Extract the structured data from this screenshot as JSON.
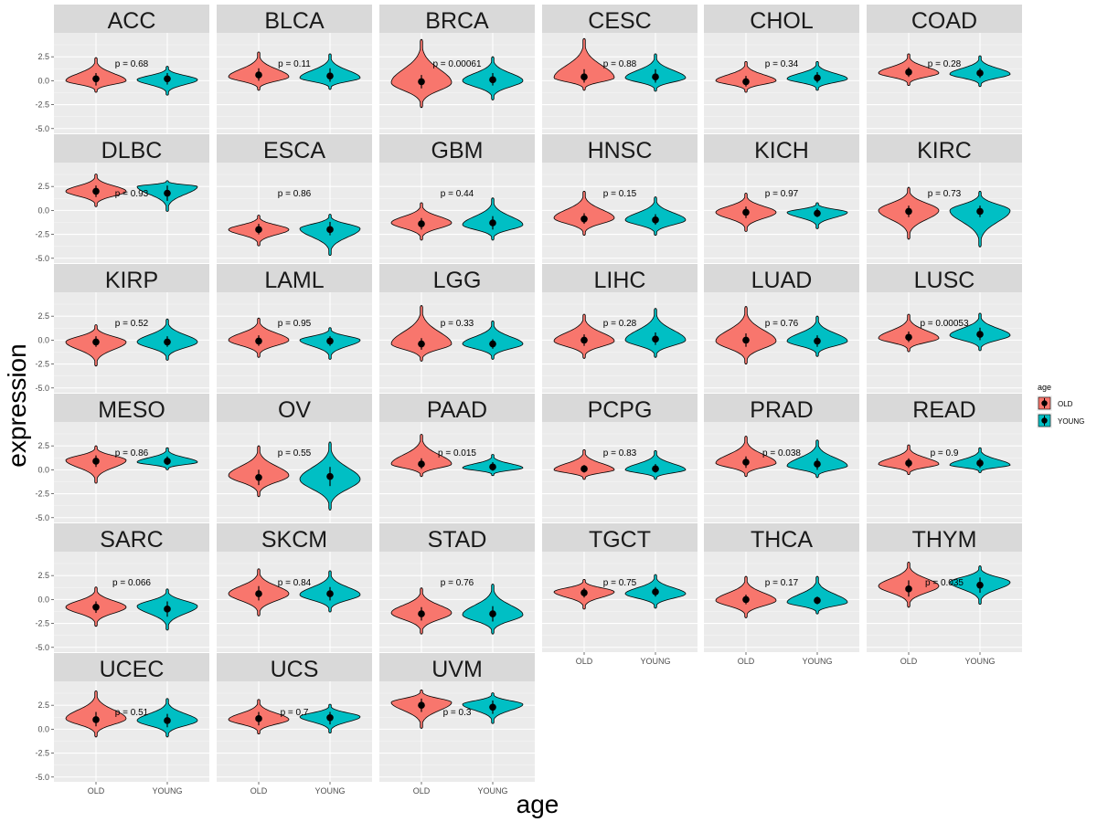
{
  "chart_data": {
    "type": "violin",
    "xlabel": "age",
    "ylabel": "expression",
    "categories": [
      "OLD",
      "YOUNG"
    ],
    "y_ticks": [
      -5.0,
      -2.5,
      0.0,
      2.5
    ],
    "y_tick_labels": [
      "-5.0",
      "-2.5",
      "0.0",
      "2.5"
    ],
    "ylim": [
      -5.5,
      5.0
    ],
    "legend": {
      "title": "age",
      "position": "right",
      "entries": [
        {
          "label": "OLD",
          "color": "#F8766D"
        },
        {
          "label": "YOUNG",
          "color": "#00BFC4"
        }
      ]
    },
    "panels": [
      {
        "name": "ACC",
        "p": "p = 0.68",
        "old": {
          "med": 0.2,
          "min": -1.2,
          "max": 2.4,
          "q1": -0.5,
          "q3": 0.8,
          "peak": 0.0
        },
        "young": {
          "med": 0.2,
          "min": -1.5,
          "max": 1.5,
          "q1": -0.4,
          "q3": 0.8,
          "peak": 0.1
        }
      },
      {
        "name": "BLCA",
        "p": "p = 0.11",
        "old": {
          "med": 0.6,
          "min": -1.0,
          "max": 3.0,
          "q1": 0.0,
          "q3": 1.3,
          "peak": 0.4
        },
        "young": {
          "med": 0.5,
          "min": -0.9,
          "max": 2.8,
          "q1": -0.1,
          "q3": 1.3,
          "peak": 0.3
        }
      },
      {
        "name": "BRCA",
        "p": "p = 0.00061",
        "old": {
          "med": -0.1,
          "min": -2.8,
          "max": 4.3,
          "q1": -0.8,
          "q3": 0.6,
          "peak": -0.2
        },
        "young": {
          "med": 0.1,
          "min": -2.0,
          "max": 2.5,
          "q1": -0.5,
          "q3": 0.8,
          "peak": 0.0
        }
      },
      {
        "name": "CESC",
        "p": "p = 0.88",
        "old": {
          "med": 0.4,
          "min": -1.0,
          "max": 4.4,
          "q1": -0.2,
          "q3": 1.2,
          "peak": 0.3
        },
        "young": {
          "med": 0.4,
          "min": -1.1,
          "max": 2.8,
          "q1": -0.2,
          "q3": 1.2,
          "peak": 0.3
        }
      },
      {
        "name": "CHOL",
        "p": "p = 0.34",
        "old": {
          "med": -0.1,
          "min": -1.2,
          "max": 2.0,
          "q1": -0.6,
          "q3": 0.5,
          "peak": 0.0
        },
        "young": {
          "med": 0.3,
          "min": -1.0,
          "max": 2.0,
          "q1": -0.2,
          "q3": 0.9,
          "peak": 0.2
        }
      },
      {
        "name": "COAD",
        "p": "p = 0.28",
        "old": {
          "med": 0.9,
          "min": -0.5,
          "max": 2.8,
          "q1": 0.4,
          "q3": 1.4,
          "peak": 0.8
        },
        "young": {
          "med": 0.8,
          "min": -0.6,
          "max": 2.6,
          "q1": 0.3,
          "q3": 1.3,
          "peak": 0.7
        }
      },
      {
        "name": "DLBC",
        "p": "p = 0.93",
        "old": {
          "med": 2.0,
          "min": 0.4,
          "max": 3.8,
          "q1": 1.4,
          "q3": 2.6,
          "peak": 2.0
        },
        "young": {
          "med": 1.8,
          "min": -0.1,
          "max": 3.1,
          "q1": 1.0,
          "q3": 2.6,
          "peak": 2.5
        }
      },
      {
        "name": "ESCA",
        "p": "p = 0.86",
        "old": {
          "med": -2.0,
          "min": -3.7,
          "max": -0.5,
          "q1": -2.5,
          "q3": -1.4,
          "peak": -2.0
        },
        "young": {
          "med": -2.0,
          "min": -4.7,
          "max": -0.4,
          "q1": -2.6,
          "q3": -1.2,
          "peak": -1.9
        }
      },
      {
        "name": "GBM",
        "p": "p = 0.44",
        "old": {
          "med": -1.4,
          "min": -3.1,
          "max": 0.8,
          "q1": -2.0,
          "q3": -0.8,
          "peak": -1.3
        },
        "young": {
          "med": -1.3,
          "min": -3.1,
          "max": 1.3,
          "q1": -2.0,
          "q3": -0.6,
          "peak": -1.5
        }
      },
      {
        "name": "HNSC",
        "p": "p = 0.15",
        "old": {
          "med": -0.9,
          "min": -2.6,
          "max": 2.0,
          "q1": -1.4,
          "q3": -0.3,
          "peak": -0.8
        },
        "young": {
          "med": -1.0,
          "min": -2.6,
          "max": 1.4,
          "q1": -1.5,
          "q3": -0.4,
          "peak": -1.0
        }
      },
      {
        "name": "KICH",
        "p": "p = 0.97",
        "old": {
          "med": -0.2,
          "min": -2.2,
          "max": 1.8,
          "q1": -0.8,
          "q3": 0.4,
          "peak": -0.2
        },
        "young": {
          "med": -0.3,
          "min": -1.9,
          "max": 0.8,
          "q1": -0.7,
          "q3": 0.2,
          "peak": -0.2
        }
      },
      {
        "name": "KIRC",
        "p": "p = 0.73",
        "old": {
          "med": -0.1,
          "min": -3.0,
          "max": 2.4,
          "q1": -0.7,
          "q3": 0.5,
          "peak": 0.0
        },
        "young": {
          "med": -0.1,
          "min": -3.8,
          "max": 2.0,
          "q1": -0.7,
          "q3": 0.5,
          "peak": 0.0
        }
      },
      {
        "name": "KIRP",
        "p": "p = 0.52",
        "old": {
          "med": -0.2,
          "min": -2.7,
          "max": 1.6,
          "q1": -0.7,
          "q3": 0.4,
          "peak": -0.2
        },
        "young": {
          "med": -0.2,
          "min": -2.1,
          "max": 2.2,
          "q1": -0.7,
          "q3": 0.4,
          "peak": -0.2
        }
      },
      {
        "name": "LAML",
        "p": "p = 0.95",
        "old": {
          "med": -0.1,
          "min": -1.8,
          "max": 2.3,
          "q1": -0.6,
          "q3": 0.5,
          "peak": 0.0
        },
        "young": {
          "med": -0.1,
          "min": -2.0,
          "max": 1.3,
          "q1": -0.6,
          "q3": 0.4,
          "peak": 0.0
        }
      },
      {
        "name": "LGG",
        "p": "p = 0.33",
        "old": {
          "med": -0.4,
          "min": -2.2,
          "max": 3.6,
          "q1": -1.0,
          "q3": 0.2,
          "peak": -0.4
        },
        "young": {
          "med": -0.4,
          "min": -2.0,
          "max": 2.0,
          "q1": -0.9,
          "q3": 0.1,
          "peak": -0.4
        }
      },
      {
        "name": "LIHC",
        "p": "p = 0.28",
        "old": {
          "med": 0.0,
          "min": -1.9,
          "max": 2.7,
          "q1": -0.6,
          "q3": 0.6,
          "peak": -0.1
        },
        "young": {
          "med": 0.1,
          "min": -1.8,
          "max": 3.3,
          "q1": -0.5,
          "q3": 0.8,
          "peak": 0.0
        }
      },
      {
        "name": "LUAD",
        "p": "p = 0.76",
        "old": {
          "med": 0.0,
          "min": -2.5,
          "max": 3.5,
          "q1": -0.7,
          "q3": 0.7,
          "peak": -0.1
        },
        "young": {
          "med": -0.1,
          "min": -1.7,
          "max": 2.5,
          "q1": -0.7,
          "q3": 0.5,
          "peak": -0.1
        }
      },
      {
        "name": "LUSC",
        "p": "p = 0.00053",
        "old": {
          "med": 0.3,
          "min": -1.2,
          "max": 2.7,
          "q1": -0.2,
          "q3": 0.9,
          "peak": 0.2
        },
        "young": {
          "med": 0.6,
          "min": -1.1,
          "max": 2.8,
          "q1": 0.0,
          "q3": 1.3,
          "peak": 0.5
        }
      },
      {
        "name": "MESO",
        "p": "p = 0.86",
        "old": {
          "med": 0.9,
          "min": -1.4,
          "max": 2.5,
          "q1": 0.3,
          "q3": 1.5,
          "peak": 1.0
        },
        "young": {
          "med": 0.9,
          "min": 0.0,
          "max": 2.3,
          "q1": 0.5,
          "q3": 1.4,
          "peak": 0.8
        }
      },
      {
        "name": "OV",
        "p": "p = 0.55",
        "old": {
          "med": -0.8,
          "min": -2.8,
          "max": 2.5,
          "q1": -1.6,
          "q3": 0.0,
          "peak": -0.6
        },
        "young": {
          "med": -0.7,
          "min": -4.2,
          "max": 2.9,
          "q1": -1.7,
          "q3": 0.3,
          "peak": -1.0
        }
      },
      {
        "name": "PAAD",
        "p": "p = 0.015",
        "old": {
          "med": 0.6,
          "min": -0.7,
          "max": 3.7,
          "q1": 0.1,
          "q3": 1.2,
          "peak": 0.6
        },
        "young": {
          "med": 0.3,
          "min": -0.6,
          "max": 1.6,
          "q1": -0.1,
          "q3": 0.8,
          "peak": 0.2
        }
      },
      {
        "name": "PCPG",
        "p": "p = 0.83",
        "old": {
          "med": 0.1,
          "min": -1.0,
          "max": 2.1,
          "q1": -0.3,
          "q3": 0.5,
          "peak": 0.0
        },
        "young": {
          "med": 0.1,
          "min": -1.0,
          "max": 2.0,
          "q1": -0.3,
          "q3": 0.6,
          "peak": 0.0
        }
      },
      {
        "name": "PRAD",
        "p": "p = 0.038",
        "old": {
          "med": 0.8,
          "min": -0.7,
          "max": 3.5,
          "q1": 0.2,
          "q3": 1.4,
          "peak": 0.7
        },
        "young": {
          "med": 0.6,
          "min": -0.8,
          "max": 3.1,
          "q1": 0.0,
          "q3": 1.2,
          "peak": 0.4
        }
      },
      {
        "name": "READ",
        "p": "p = 0.9",
        "old": {
          "med": 0.7,
          "min": -0.5,
          "max": 2.6,
          "q1": 0.2,
          "q3": 1.2,
          "peak": 0.6
        },
        "young": {
          "med": 0.7,
          "min": -0.3,
          "max": 2.3,
          "q1": 0.2,
          "q3": 1.2,
          "peak": 0.5
        }
      },
      {
        "name": "SARC",
        "p": "p = 0.066",
        "old": {
          "med": -0.8,
          "min": -2.8,
          "max": 1.3,
          "q1": -1.4,
          "q3": -0.2,
          "peak": -0.8
        },
        "young": {
          "med": -1.0,
          "min": -3.2,
          "max": 1.1,
          "q1": -1.8,
          "q3": -0.2,
          "peak": -0.7
        }
      },
      {
        "name": "SKCM",
        "p": "p = 0.84",
        "old": {
          "med": 0.6,
          "min": -1.7,
          "max": 3.2,
          "q1": -0.1,
          "q3": 1.4,
          "peak": 0.6
        },
        "young": {
          "med": 0.6,
          "min": -1.3,
          "max": 3.0,
          "q1": -0.1,
          "q3": 1.3,
          "peak": 0.5
        }
      },
      {
        "name": "STAD",
        "p": "p = 0.76",
        "old": {
          "med": -1.5,
          "min": -3.6,
          "max": 1.2,
          "q1": -2.2,
          "q3": -0.8,
          "peak": -1.4
        },
        "young": {
          "med": -1.5,
          "min": -3.6,
          "max": 1.6,
          "q1": -2.3,
          "q3": -0.7,
          "peak": -1.6
        }
      },
      {
        "name": "TGCT",
        "p": "p = 0.75",
        "old": {
          "med": 0.7,
          "min": -1.0,
          "max": 2.1,
          "q1": 0.2,
          "q3": 1.2,
          "peak": 0.8
        },
        "young": {
          "med": 0.8,
          "min": -0.9,
          "max": 2.6,
          "q1": 0.3,
          "q3": 1.3,
          "peak": 0.6
        }
      },
      {
        "name": "THCA",
        "p": "p = 0.17",
        "old": {
          "med": 0.0,
          "min": -1.9,
          "max": 2.4,
          "q1": -0.5,
          "q3": 0.5,
          "peak": -0.1
        },
        "young": {
          "med": -0.1,
          "min": -1.5,
          "max": 2.4,
          "q1": -0.5,
          "q3": 0.3,
          "peak": -0.3
        }
      },
      {
        "name": "THYM",
        "p": "p = 0.035",
        "old": {
          "med": 1.1,
          "min": -0.8,
          "max": 3.9,
          "q1": 0.3,
          "q3": 2.0,
          "peak": 1.4
        },
        "young": {
          "med": 1.5,
          "min": -0.5,
          "max": 3.5,
          "q1": 0.7,
          "q3": 2.3,
          "peak": 1.8
        }
      },
      {
        "name": "UCEC",
        "p": "p = 0.51",
        "old": {
          "med": 1.0,
          "min": -0.8,
          "max": 4.0,
          "q1": 0.3,
          "q3": 1.8,
          "peak": 1.1
        },
        "young": {
          "med": 0.9,
          "min": -0.8,
          "max": 3.2,
          "q1": 0.2,
          "q3": 1.6,
          "peak": 0.9
        }
      },
      {
        "name": "UCS",
        "p": "p = 0.7",
        "old": {
          "med": 1.1,
          "min": -0.5,
          "max": 3.1,
          "q1": 0.4,
          "q3": 1.8,
          "peak": 1.0
        },
        "young": {
          "med": 1.2,
          "min": -0.4,
          "max": 2.6,
          "q1": 0.5,
          "q3": 1.8,
          "peak": 1.3
        }
      },
      {
        "name": "UVM",
        "p": "p = 0.3",
        "old": {
          "med": 2.5,
          "min": 0.1,
          "max": 4.1,
          "q1": 1.8,
          "q3": 3.2,
          "peak": 2.8
        },
        "young": {
          "med": 2.3,
          "min": 0.6,
          "max": 3.8,
          "q1": 1.6,
          "q3": 3.0,
          "peak": 2.6
        }
      }
    ]
  }
}
